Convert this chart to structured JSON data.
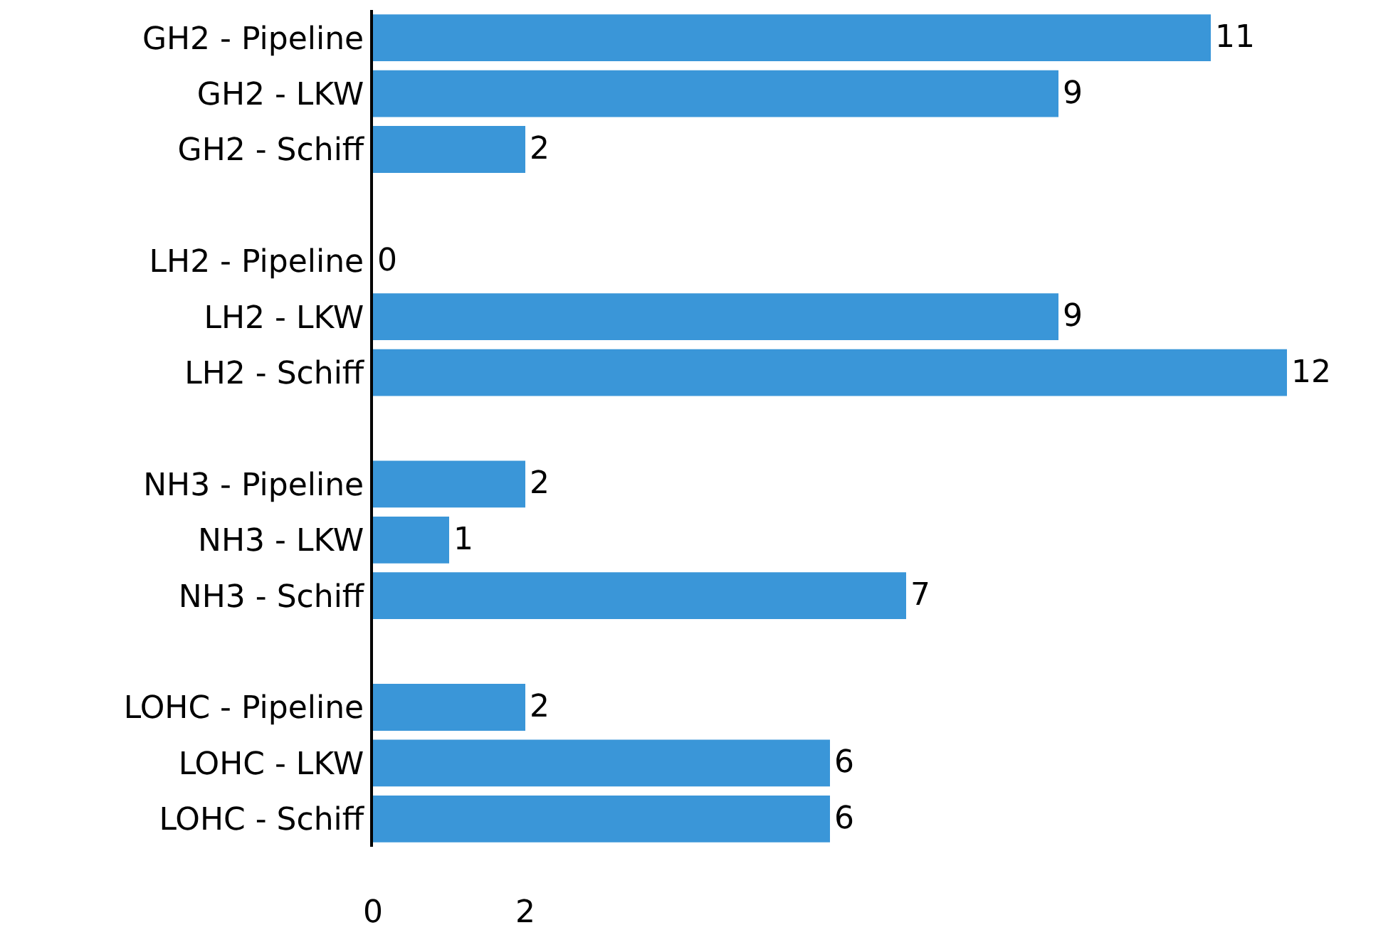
{
  "chart_data": {
    "type": "bar",
    "orientation": "horizontal",
    "categories": [
      "GH2 - Pipeline",
      "GH2 - LKW",
      "GH2 - Schiff",
      null,
      "LH2 - Pipeline",
      "LH2 - LKW",
      "LH2 - Schiff",
      null,
      "NH3 - Pipeline",
      "NH3 - LKW",
      "NH3 - Schiff",
      null,
      "LOHC - Pipeline",
      "LOHC - LKW",
      "LOHC - Schiff"
    ],
    "values": [
      11,
      9,
      2,
      null,
      0,
      9,
      12,
      null,
      2,
      1,
      7,
      null,
      2,
      6,
      6
    ],
    "color": "#3a96d8",
    "xlim": [
      0,
      12
    ],
    "xticks": [
      0,
      2
    ],
    "data_labels": true
  }
}
